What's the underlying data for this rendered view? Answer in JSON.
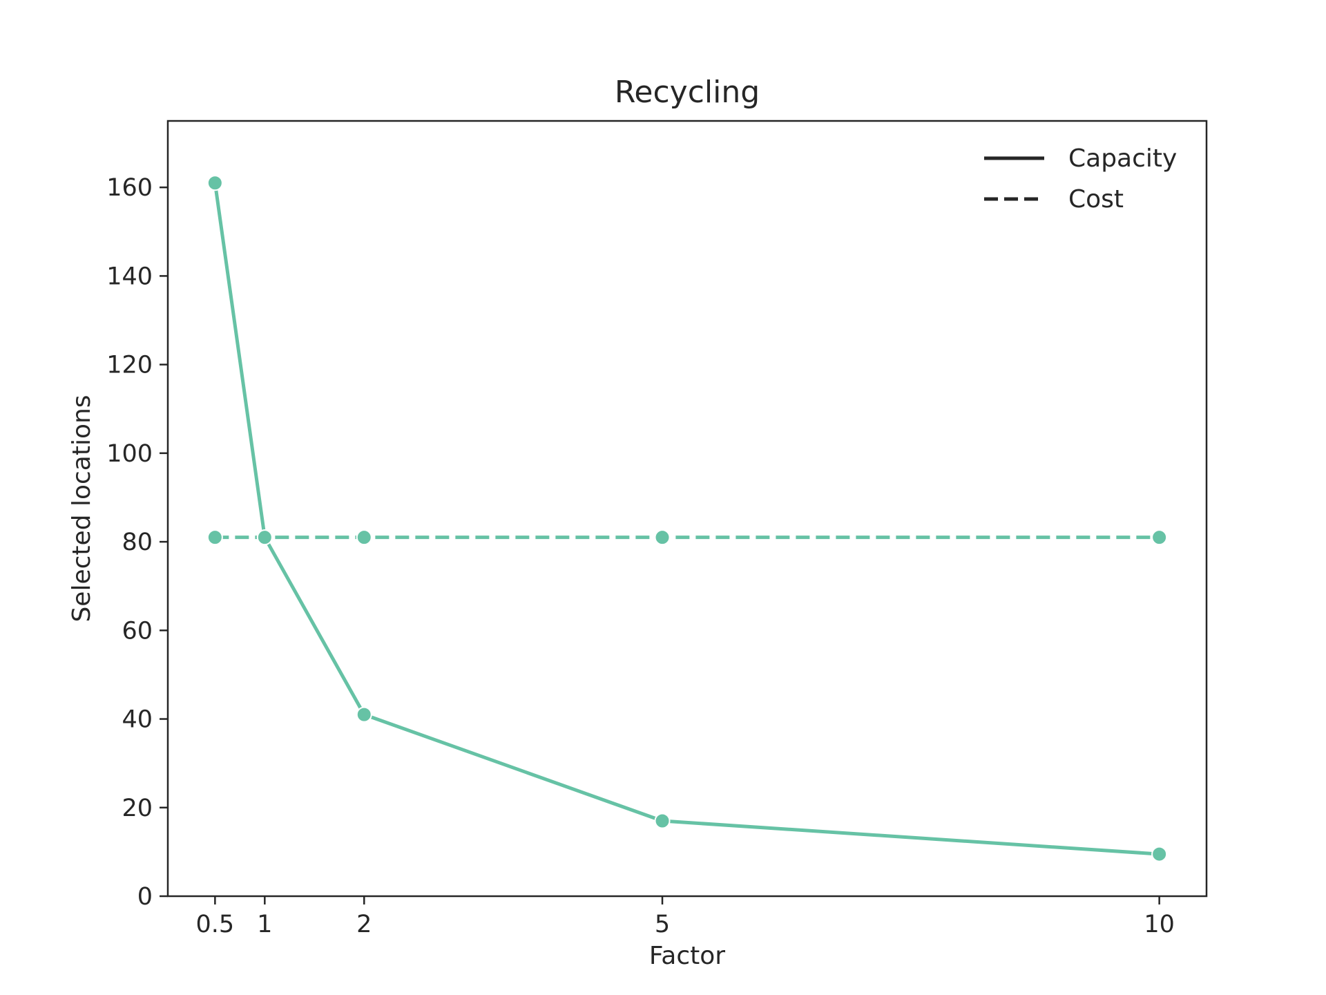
{
  "chart_data": {
    "type": "line",
    "title": "Recycling",
    "xlabel": "Factor",
    "ylabel": "Selected locations",
    "x": [
      0.5,
      1,
      2,
      5,
      10
    ],
    "xticks": [
      "0.5",
      "1",
      "2",
      "5",
      "10"
    ],
    "yticks": [
      "0",
      "20",
      "40",
      "60",
      "80",
      "100",
      "120",
      "140",
      "160"
    ],
    "xlim": [
      0.025,
      10.475
    ],
    "ylim": [
      0,
      175
    ],
    "grid": false,
    "legend_position": "top-right",
    "series": [
      {
        "name": "Capacity",
        "style": "solid",
        "values": [
          161,
          81,
          41,
          17,
          9.5
        ]
      },
      {
        "name": "Cost",
        "style": "dashed",
        "values": [
          81,
          81,
          81,
          81,
          81
        ]
      }
    ],
    "colors": {
      "series": "#66c2a5",
      "axes": "#262626",
      "background": "#ffffff"
    }
  }
}
